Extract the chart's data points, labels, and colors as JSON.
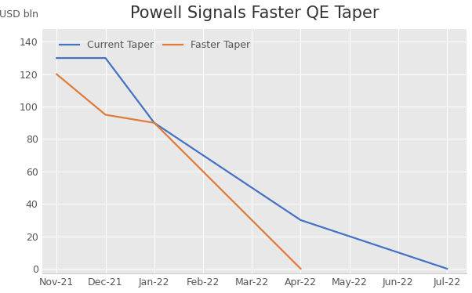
{
  "title": "Powell Signals Faster QE Taper",
  "ylabel": "USD bln",
  "background_color": "#ffffff",
  "plot_bg_color": "#e8e8e8",
  "current_taper": {
    "label": "Current Taper",
    "color": "#4472c4",
    "x": [
      0,
      1,
      2,
      3,
      4,
      5,
      6,
      7,
      8
    ],
    "y": [
      130,
      130,
      90,
      70,
      50,
      30,
      20,
      10,
      0
    ]
  },
  "faster_taper": {
    "label": "Faster Taper",
    "color": "#e07b39",
    "x": [
      0,
      1,
      2,
      5
    ],
    "y": [
      120,
      95,
      90,
      0
    ]
  },
  "xtick_labels": [
    "Nov-21",
    "Dec-21",
    "Jan-22",
    "Feb-22",
    "Mar-22",
    "Apr-22",
    "May-22",
    "Jun-22",
    "Jul-22"
  ],
  "yticks": [
    0,
    20,
    40,
    60,
    80,
    100,
    120,
    140
  ],
  "ylim": [
    -3,
    148
  ],
  "xlim": [
    -0.3,
    8.4
  ],
  "title_fontsize": 15,
  "label_fontsize": 9,
  "tick_fontsize": 9,
  "legend_fontsize": 9,
  "linewidth": 1.6
}
